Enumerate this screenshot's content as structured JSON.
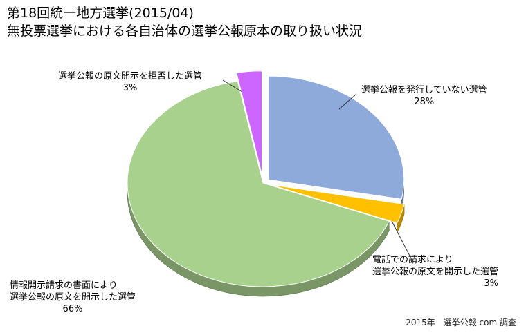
{
  "title_line1": "第18回統一地方選挙(2015/04)",
  "title_line2": "無投票選挙における各自治体の選挙公報原本の取り扱い状況",
  "credit": "2015年　選挙公報.com 調査",
  "chart_data": {
    "type": "pie",
    "title": "第18回統一地方選挙(2015/04) 無投票選挙における各自治体の選挙公報原本の取り扱い状況",
    "slices": [
      {
        "label": "選挙公報を発行していない選管",
        "line2": "",
        "value": 28,
        "pct_label": "28%",
        "color": "#8eaadb"
      },
      {
        "label": "電話での請求により",
        "line2": "選挙公報の原文を開示した選管",
        "value": 3,
        "pct_label": "3%",
        "color": "#ffc000"
      },
      {
        "label": "情報開示請求の書面により",
        "line2": "選挙公報の原文を開示した選管",
        "value": 66,
        "pct_label": "66%",
        "color": "#a9d18e"
      },
      {
        "label": "選挙公報の原文開示を拒否した選管",
        "line2": "",
        "value": 3,
        "pct_label": "3%",
        "color": "#cc66ff"
      }
    ]
  }
}
